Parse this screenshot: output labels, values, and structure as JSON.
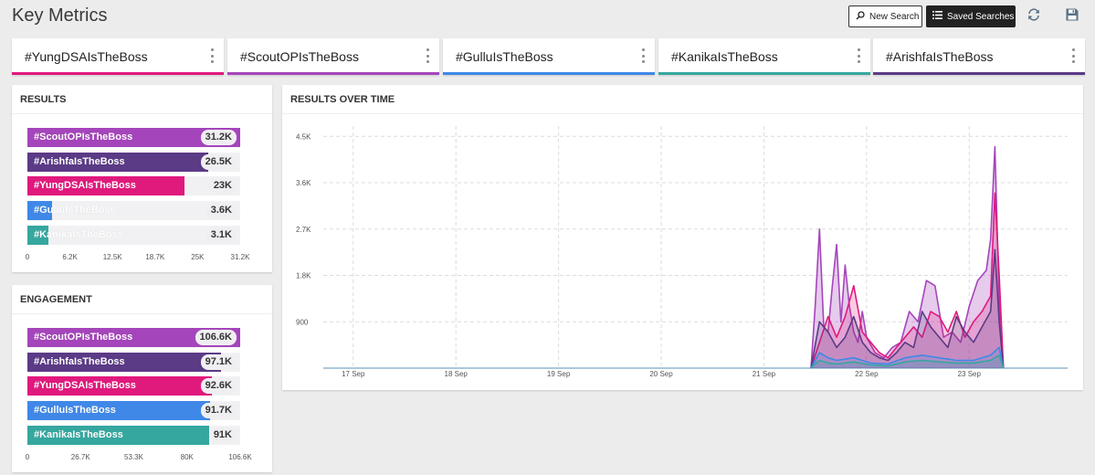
{
  "header": {
    "title": "Key Metrics",
    "new_search_label": "New Search",
    "saved_searches_label": "Saved Searches"
  },
  "icons": [
    "search-icon",
    "list-icon",
    "refresh-icon",
    "save-icon",
    "more-vertical-icon"
  ],
  "colors": {
    "yungdsa": "#e0197d",
    "scoutop": "#a545bb",
    "gullu": "#3f88e8",
    "kanika": "#35a79f",
    "arishfa": "#5b3a86"
  },
  "tabs": [
    {
      "label": "#YungDSAIsTheBoss",
      "color": "#e0197d"
    },
    {
      "label": "#ScoutOPIsTheBoss",
      "color": "#a545bb"
    },
    {
      "label": "#GulluIsTheBoss",
      "color": "#3f88e8"
    },
    {
      "label": "#KanikaIsTheBoss",
      "color": "#35a79f"
    },
    {
      "label": "#ArishfaIsTheBoss",
      "color": "#5b3a86"
    }
  ],
  "results": {
    "title": "RESULTS",
    "max": 31200,
    "ticks": [
      "0",
      "6.2K",
      "12.5K",
      "18.7K",
      "25K",
      "31.2K"
    ],
    "bars": [
      {
        "label": "#ScoutOPIsTheBoss",
        "value": 31200,
        "display": "31.2K",
        "color": "#a545bb"
      },
      {
        "label": "#ArishfaIsTheBoss",
        "value": 26500,
        "display": "26.5K",
        "color": "#5b3a86"
      },
      {
        "label": "#YungDSAIsTheBoss",
        "value": 23000,
        "display": "23K",
        "color": "#e0197d"
      },
      {
        "label": "#GulluIsTheBoss",
        "value": 3600,
        "display": "3.6K",
        "color": "#3f88e8"
      },
      {
        "label": "#KanikaIsTheBoss",
        "value": 3100,
        "display": "3.1K",
        "color": "#35a79f"
      }
    ]
  },
  "engagement": {
    "title": "ENGAGEMENT",
    "max": 106600,
    "ticks": [
      "0",
      "26.7K",
      "53.3K",
      "80K",
      "106.6K"
    ],
    "bars": [
      {
        "label": "#ScoutOPIsTheBoss",
        "value": 106600,
        "display": "106.6K",
        "color": "#a545bb"
      },
      {
        "label": "#ArishfaIsTheBoss",
        "value": 97100,
        "display": "97.1K",
        "color": "#5b3a86"
      },
      {
        "label": "#YungDSAIsTheBoss",
        "value": 92600,
        "display": "92.6K",
        "color": "#e0197d"
      },
      {
        "label": "#GulluIsTheBoss",
        "value": 91700,
        "display": "91.7K",
        "color": "#3f88e8"
      },
      {
        "label": "#KanikaIsTheBoss",
        "value": 91000,
        "display": "91K",
        "color": "#35a79f"
      }
    ]
  },
  "results_over_time": {
    "title": "RESULTS OVER TIME"
  },
  "chart_data": [
    {
      "type": "bar",
      "title": "RESULTS",
      "orientation": "horizontal",
      "categories": [
        "#ScoutOPIsTheBoss",
        "#ArishfaIsTheBoss",
        "#YungDSAIsTheBoss",
        "#GulluIsTheBoss",
        "#KanikaIsTheBoss"
      ],
      "values": [
        31200,
        26500,
        23000,
        3600,
        3100
      ],
      "xlim": [
        0,
        31200
      ]
    },
    {
      "type": "bar",
      "title": "ENGAGEMENT",
      "orientation": "horizontal",
      "categories": [
        "#ScoutOPIsTheBoss",
        "#ArishfaIsTheBoss",
        "#YungDSAIsTheBoss",
        "#GulluIsTheBoss",
        "#KanikaIsTheBoss"
      ],
      "values": [
        106600,
        97100,
        92600,
        91700,
        91000
      ],
      "xlim": [
        0,
        106600
      ]
    },
    {
      "type": "area",
      "title": "RESULTS OVER TIME",
      "x_ticks": [
        "17 Sep",
        "18 Sep",
        "19 Sep",
        "20 Sep",
        "21 Sep",
        "22 Sep",
        "23 Sep"
      ],
      "y_ticks": [
        "900",
        "1.8K",
        "2.7K",
        "3.6K",
        "4.5K"
      ],
      "ylim": [
        0,
        4700
      ],
      "grid": true,
      "series": [
        {
          "color": "#a545bb",
          "x": [
            "2018-09-21 11:00",
            "2018-09-21 12:00",
            "2018-09-21 13:00",
            "2018-09-21 14:00",
            "2018-09-21 15:00",
            "2018-09-21 16:00",
            "2018-09-21 17:00",
            "2018-09-21 18:00",
            "2018-09-21 19:00",
            "2018-09-21 20:00",
            "2018-09-21 21:00",
            "2018-09-21 22:00",
            "2018-09-21 23:00",
            "2018-09-22 00:00",
            "2018-09-22 02:00",
            "2018-09-22 04:00",
            "2018-09-22 06:00",
            "2018-09-22 08:00",
            "2018-09-22 10:00",
            "2018-09-22 12:00",
            "2018-09-22 14:00",
            "2018-09-22 16:00",
            "2018-09-22 18:00",
            "2018-09-22 20:00",
            "2018-09-22 22:00",
            "2018-09-23 00:00",
            "2018-09-23 02:00",
            "2018-09-23 04:00",
            "2018-09-23 05:00",
            "2018-09-23 06:00",
            "2018-09-23 07:00",
            "2018-09-23 08:00"
          ],
          "y": [
            0,
            1200,
            2700,
            800,
            700,
            1600,
            2400,
            900,
            2000,
            1200,
            700,
            500,
            1100,
            600,
            300,
            200,
            400,
            500,
            1100,
            900,
            1700,
            1600,
            600,
            700,
            500,
            1200,
            1700,
            1900,
            2500,
            4300,
            1300,
            0
          ]
        },
        {
          "color": "#e0197d",
          "x": [
            "2018-09-21 11:00",
            "2018-09-21 13:00",
            "2018-09-21 15:00",
            "2018-09-21 17:00",
            "2018-09-21 19:00",
            "2018-09-21 21:00",
            "2018-09-21 23:00",
            "2018-09-22 01:00",
            "2018-09-22 03:00",
            "2018-09-22 05:00",
            "2018-09-22 07:00",
            "2018-09-22 09:00",
            "2018-09-22 11:00",
            "2018-09-22 13:00",
            "2018-09-22 15:00",
            "2018-09-22 17:00",
            "2018-09-22 19:00",
            "2018-09-22 21:00",
            "2018-09-22 23:00",
            "2018-09-23 01:00",
            "2018-09-23 03:00",
            "2018-09-23 05:00",
            "2018-09-23 06:00",
            "2018-09-23 07:00",
            "2018-09-23 08:00"
          ],
          "y": [
            0,
            500,
            1000,
            600,
            1000,
            1600,
            700,
            500,
            300,
            200,
            400,
            600,
            800,
            600,
            1100,
            1000,
            700,
            1100,
            600,
            900,
            1100,
            1400,
            3400,
            1800,
            0
          ]
        },
        {
          "color": "#5b3a86",
          "x": [
            "2018-09-21 11:00",
            "2018-09-21 13:00",
            "2018-09-21 15:00",
            "2018-09-21 17:00",
            "2018-09-21 19:00",
            "2018-09-21 21:00",
            "2018-09-21 23:00",
            "2018-09-22 01:00",
            "2018-09-22 03:00",
            "2018-09-22 05:00",
            "2018-09-22 07:00",
            "2018-09-22 09:00",
            "2018-09-22 11:00",
            "2018-09-22 13:00",
            "2018-09-22 15:00",
            "2018-09-22 17:00",
            "2018-09-22 19:00",
            "2018-09-22 21:00",
            "2018-09-22 23:00",
            "2018-09-23 01:00",
            "2018-09-23 03:00",
            "2018-09-23 05:00",
            "2018-09-23 06:00",
            "2018-09-23 07:00",
            "2018-09-23 08:00"
          ],
          "y": [
            0,
            900,
            700,
            400,
            600,
            1000,
            500,
            300,
            200,
            150,
            300,
            500,
            400,
            1100,
            800,
            600,
            400,
            1000,
            700,
            500,
            800,
            1100,
            2300,
            900,
            0
          ]
        },
        {
          "color": "#3f88e8",
          "x": [
            "2018-09-21 11:00",
            "2018-09-21 13:00",
            "2018-09-21 15:00",
            "2018-09-21 17:00",
            "2018-09-21 21:00",
            "2018-09-22 01:00",
            "2018-09-22 05:00",
            "2018-09-22 09:00",
            "2018-09-22 13:00",
            "2018-09-22 17:00",
            "2018-09-22 21:00",
            "2018-09-23 01:00",
            "2018-09-23 05:00",
            "2018-09-23 07:00",
            "2018-09-23 08:00"
          ],
          "y": [
            0,
            300,
            200,
            150,
            200,
            100,
            80,
            200,
            250,
            200,
            150,
            150,
            250,
            400,
            0
          ]
        },
        {
          "color": "#35a79f",
          "x": [
            "2018-09-21 11:00",
            "2018-09-21 13:00",
            "2018-09-21 15:00",
            "2018-09-21 17:00",
            "2018-09-21 21:00",
            "2018-09-22 01:00",
            "2018-09-22 05:00",
            "2018-09-22 09:00",
            "2018-09-22 13:00",
            "2018-09-22 17:00",
            "2018-09-22 21:00",
            "2018-09-23 01:00",
            "2018-09-23 05:00",
            "2018-09-23 07:00",
            "2018-09-23 08:00"
          ],
          "y": [
            0,
            150,
            100,
            80,
            120,
            60,
            40,
            120,
            150,
            120,
            100,
            100,
            150,
            250,
            0
          ]
        }
      ]
    }
  ]
}
